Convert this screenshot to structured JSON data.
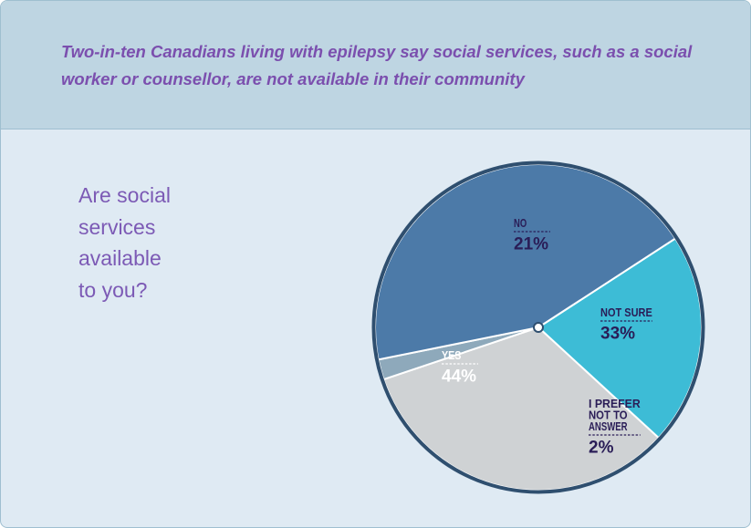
{
  "header": {
    "title": "Two-in-ten Canadians living with epilepsy say social services, such as a social worker or counsellor, are not available in their community"
  },
  "question": {
    "lines": [
      "Are social",
      "services",
      "available",
      "to you?"
    ]
  },
  "colors": {
    "yes": "#4c7aa8",
    "no": "#3dbcd6",
    "not_sure": "#cfd2d4",
    "prefer_not": "#8ea9bb",
    "rim": "#2f4f6f",
    "label_light": "#ffffff",
    "label_dark": "#2a1d57"
  },
  "chart_data": {
    "type": "pie",
    "title": "Are social services available to you?",
    "slices": [
      {
        "label": "NO",
        "value": 21,
        "display": "21%",
        "color": "#3dbcd6"
      },
      {
        "label": "NOT SURE",
        "value": 33,
        "display": "33%",
        "color": "#cfd2d4"
      },
      {
        "label": "I PREFER NOT TO ANSWER",
        "value": 2,
        "display": "2%",
        "color": "#8ea9bb"
      },
      {
        "label": "YES",
        "value": 44,
        "display": "44%",
        "color": "#4c7aa8"
      }
    ]
  }
}
